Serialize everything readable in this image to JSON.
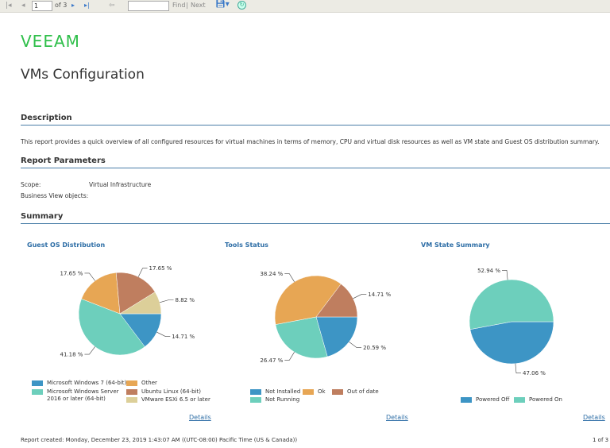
{
  "toolbar": {
    "page": "1",
    "of_pages": "of 3",
    "find": "Find",
    "separator": "|",
    "next": "Next",
    "find_value": ""
  },
  "logo": "VEEAM",
  "title": "VMs Configuration",
  "description": {
    "heading": "Description",
    "text": "This report provides a quick overview of all configured resources for virtual machines in terms of memory, CPU and virtual disk resources as well as VM state and Guest OS distribution summary."
  },
  "parameters": {
    "heading": "Report Parameters",
    "scope_label": "Scope:",
    "scope_value": "Virtual Infrastructure",
    "bv_label": "Business View objects:"
  },
  "summary": {
    "heading": "Summary",
    "details": "Details"
  },
  "colors": {
    "blue": "#3d95c5",
    "teal": "#6dcfbc",
    "orange": "#e7a654",
    "brown": "#bf7e5f",
    "tan": "#dccf99"
  },
  "chart_data": [
    {
      "type": "pie",
      "title": "Guest OS Distribution",
      "slices": [
        {
          "name": "Microsoft Windows 7 (64-bit)",
          "value": 14.71,
          "label": "14.71 %",
          "color": "#3d95c5"
        },
        {
          "name": "Microsoft Windows Server 2016 or later (64-bit)",
          "value": 41.18,
          "label": "41.18 %",
          "color": "#6dcfbc"
        },
        {
          "name": "Other",
          "value": 17.65,
          "label": "17.65 %",
          "color": "#e7a654"
        },
        {
          "name": "Ubuntu Linux (64-bit)",
          "value": 17.65,
          "label": "17.65 %",
          "color": "#bf7e5f"
        },
        {
          "name": "VMware ESXi 6.5 or later",
          "value": 8.82,
          "label": "8.82 %",
          "color": "#dccf99"
        }
      ]
    },
    {
      "type": "pie",
      "title": "Tools Status",
      "slices": [
        {
          "name": "Not Installed",
          "value": 20.59,
          "label": "20.59 %",
          "color": "#3d95c5"
        },
        {
          "name": "Not Running",
          "value": 26.47,
          "label": "26.47 %",
          "color": "#6dcfbc"
        },
        {
          "name": "Ok",
          "value": 38.24,
          "label": "38.24 %",
          "color": "#e7a654"
        },
        {
          "name": "Out of date",
          "value": 14.71,
          "label": "14.71 %",
          "color": "#bf7e5f"
        }
      ]
    },
    {
      "type": "pie",
      "title": "VM State Summary",
      "slices": [
        {
          "name": "Powered Off",
          "value": 47.06,
          "label": "47.06 %",
          "color": "#3d95c5"
        },
        {
          "name": "Powered On",
          "value": 52.94,
          "label": "52.94 %",
          "color": "#6dcfbc"
        }
      ]
    }
  ],
  "footer": {
    "created": "Report created:  Monday, December 23, 2019 1:43:07 AM ((UTC-08:00) Pacific Time (US & Canada))",
    "page": "1 of 3"
  }
}
